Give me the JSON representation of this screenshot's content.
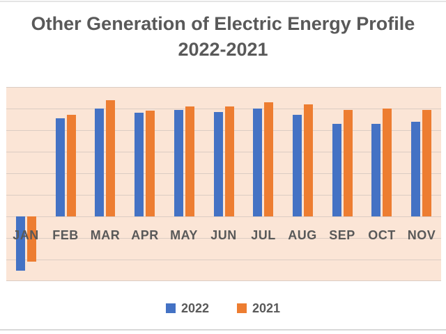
{
  "page": {
    "background": "#ffffff",
    "top_border_color": "#e4e4e4",
    "bottom_border_color": "#d8d8d8"
  },
  "title": {
    "line1": "Other Generation of Electric Energy Profile",
    "line2": "2022-2021",
    "color": "#595959"
  },
  "legend": {
    "items": [
      {
        "label": "2022",
        "color": "#4472C4"
      },
      {
        "label": "2021",
        "color": "#ED7D31"
      }
    ],
    "position": "bottom"
  },
  "chart_data": {
    "type": "bar",
    "title": "Other Generation of Electric Energy Profile 2022-2021",
    "categories": [
      "JAN",
      "FEB",
      "MAR",
      "APR",
      "MAY",
      "JUN",
      "JUL",
      "AUG",
      "SEP",
      "OCT",
      "NOV"
    ],
    "series": [
      {
        "name": "2022",
        "color": "#4472C4",
        "values": [
          -2.5,
          4.55,
          5.0,
          4.8,
          4.95,
          4.85,
          5.0,
          4.7,
          4.3,
          4.3,
          4.4
        ]
      },
      {
        "name": "2021",
        "color": "#ED7D31",
        "values": [
          -2.1,
          4.7,
          5.4,
          4.9,
          5.1,
          5.1,
          5.3,
          5.2,
          4.95,
          5.0,
          4.95
        ]
      }
    ],
    "xlabel": "",
    "ylabel": "",
    "ylim": [
      -3,
      6
    ],
    "gridline_interval": 1,
    "y_axis_tick_labels_visible": false,
    "grid": true,
    "plot_background": "#FBE5D6",
    "gridline_color": "#dbccc3",
    "label_color": "#595959",
    "legend_position": "bottom",
    "note": "values in gridline units; no numeric axis labels shown in chart"
  }
}
